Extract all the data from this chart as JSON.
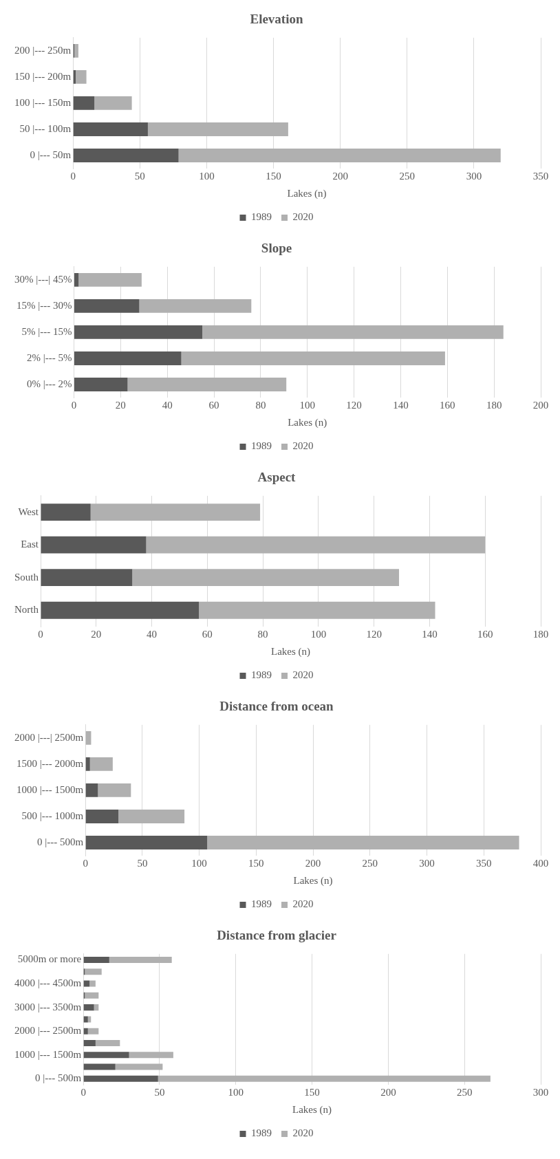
{
  "chart_data": [
    {
      "type": "bar",
      "title": "Elevation",
      "xlabel": "Lakes (n)",
      "orientation": "horizontal",
      "stacked": true,
      "categories": [
        "200 |--- 250m",
        "150 |--- 200m",
        "100 |--- 150m",
        "50 |--- 100m",
        "0 |--- 50m"
      ],
      "series": [
        {
          "name": "1989",
          "color": "#595959",
          "values": [
            1,
            2,
            16,
            56,
            79
          ]
        },
        {
          "name": "2020",
          "color": "#b0b0b0",
          "values": [
            3,
            8,
            28,
            105,
            241
          ]
        }
      ],
      "xlim": [
        0,
        350
      ],
      "xticks": [
        0,
        50,
        100,
        150,
        200,
        250,
        300,
        350
      ],
      "grid": "x",
      "legend": "bottom"
    },
    {
      "type": "bar",
      "title": "Slope",
      "xlabel": "Lakes (n)",
      "orientation": "horizontal",
      "stacked": true,
      "categories": [
        "30% |---| 45%",
        "15% |--- 30%",
        "5% |--- 15%",
        "2% |--- 5%",
        "0% |--- 2%"
      ],
      "series": [
        {
          "name": "1989",
          "color": "#595959",
          "values": [
            2,
            28,
            55,
            46,
            23
          ]
        },
        {
          "name": "2020",
          "color": "#b0b0b0",
          "values": [
            27,
            48,
            129,
            113,
            68
          ]
        }
      ],
      "xlim": [
        0,
        200
      ],
      "xticks": [
        0,
        20,
        40,
        60,
        80,
        100,
        120,
        140,
        160,
        180,
        200
      ],
      "grid": "x",
      "legend": "bottom"
    },
    {
      "type": "bar",
      "title": "Aspect",
      "xlabel": "Lakes (n)",
      "orientation": "horizontal",
      "stacked": true,
      "categories": [
        "West",
        "East",
        "South",
        "North"
      ],
      "series": [
        {
          "name": "1989",
          "color": "#595959",
          "values": [
            18,
            38,
            33,
            57
          ]
        },
        {
          "name": "2020",
          "color": "#b0b0b0",
          "values": [
            61,
            122,
            96,
            85
          ]
        }
      ],
      "xlim": [
        0,
        180
      ],
      "xticks": [
        0,
        20,
        40,
        60,
        80,
        100,
        120,
        140,
        160,
        180
      ],
      "grid": "x",
      "legend": "bottom"
    },
    {
      "type": "bar",
      "title": "Distance from ocean",
      "xlabel": "Lakes (n)",
      "orientation": "horizontal",
      "stacked": true,
      "categories": [
        "2000 |---| 2500m",
        "1500 |--- 2000m",
        "1000 |--- 1500m",
        "500 |--- 1000m",
        "0 |--- 500m"
      ],
      "series": [
        {
          "name": "1989",
          "color": "#595959",
          "values": [
            0,
            4,
            11,
            29,
            107
          ]
        },
        {
          "name": "2020",
          "color": "#b0b0b0",
          "values": [
            5,
            20,
            29,
            58,
            274
          ]
        }
      ],
      "xlim": [
        0,
        400
      ],
      "xticks": [
        0,
        50,
        100,
        150,
        200,
        250,
        300,
        350,
        400
      ],
      "grid": "x",
      "legend": "bottom"
    },
    {
      "type": "bar",
      "title": "Distance from glacier",
      "xlabel": "Lakes (n)",
      "orientation": "horizontal",
      "stacked": true,
      "categories": [
        "5000m or more",
        null,
        "4000 |--- 4500m",
        null,
        "3000 |--- 3500m",
        null,
        "2000 |--- 2500m",
        null,
        "1000 |--- 1500m",
        null,
        "0 |--- 500m"
      ],
      "series": [
        {
          "name": "1989",
          "color": "#595959",
          "values": [
            17,
            1,
            4,
            1,
            7,
            3,
            3,
            8,
            30,
            21,
            49
          ]
        },
        {
          "name": "2020",
          "color": "#b0b0b0",
          "values": [
            41,
            11,
            4,
            9,
            3,
            2,
            7,
            16,
            29,
            31,
            218
          ]
        }
      ],
      "xlim": [
        0,
        300
      ],
      "xticks": [
        0,
        50,
        100,
        150,
        200,
        250,
        300
      ],
      "grid": "x",
      "legend": "bottom"
    }
  ]
}
